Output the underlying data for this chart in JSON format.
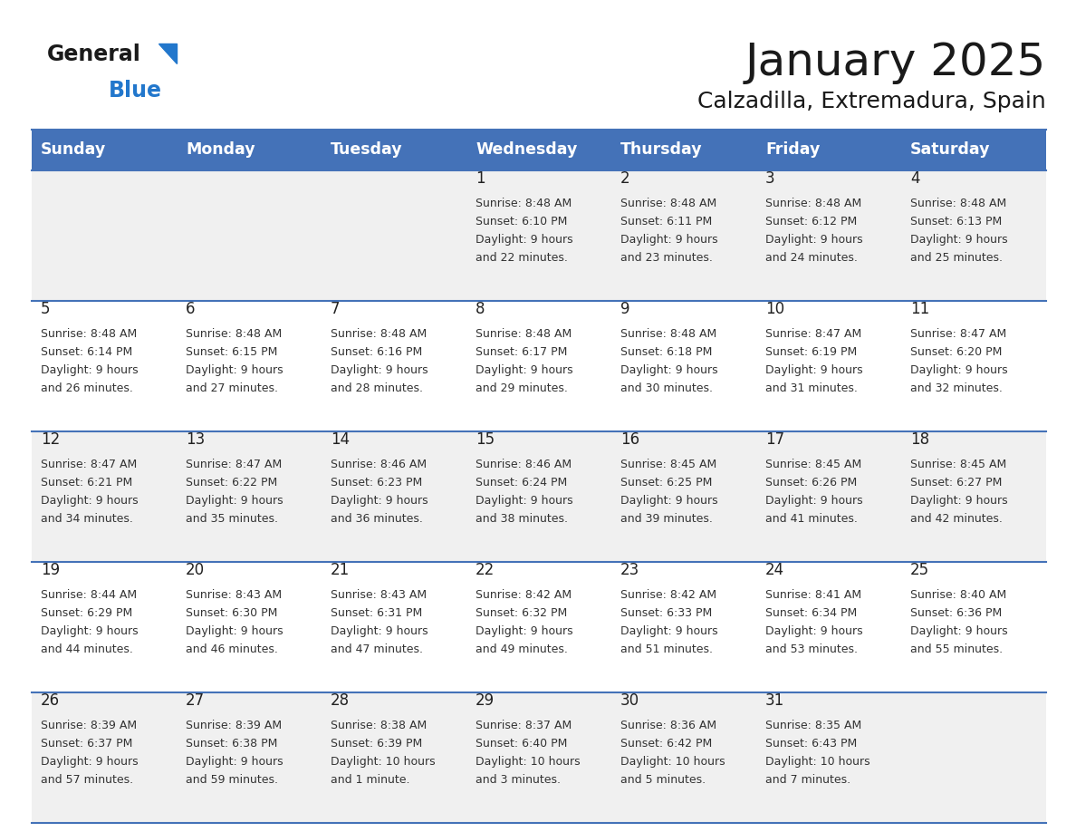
{
  "title": "January 2025",
  "subtitle": "Calzadilla, Extremadura, Spain",
  "days_of_week": [
    "Sunday",
    "Monday",
    "Tuesday",
    "Wednesday",
    "Thursday",
    "Friday",
    "Saturday"
  ],
  "header_bg": "#4472b8",
  "header_text": "#ffffff",
  "row_bg_odd": "#f0f0f0",
  "row_bg_even": "#ffffff",
  "cell_border_color": "#4472b8",
  "day_num_color": "#222222",
  "cell_text_color": "#333333",
  "title_color": "#1a1a1a",
  "subtitle_color": "#1a1a1a",
  "logo_general_color": "#1a1a1a",
  "logo_blue_color": "#2277cc",
  "logo_triangle_color": "#2277cc",
  "calendar": [
    [
      {
        "day": null,
        "info": ""
      },
      {
        "day": null,
        "info": ""
      },
      {
        "day": null,
        "info": ""
      },
      {
        "day": 1,
        "info": "Sunrise: 8:48 AM\nSunset: 6:10 PM\nDaylight: 9 hours\nand 22 minutes."
      },
      {
        "day": 2,
        "info": "Sunrise: 8:48 AM\nSunset: 6:11 PM\nDaylight: 9 hours\nand 23 minutes."
      },
      {
        "day": 3,
        "info": "Sunrise: 8:48 AM\nSunset: 6:12 PM\nDaylight: 9 hours\nand 24 minutes."
      },
      {
        "day": 4,
        "info": "Sunrise: 8:48 AM\nSunset: 6:13 PM\nDaylight: 9 hours\nand 25 minutes."
      }
    ],
    [
      {
        "day": 5,
        "info": "Sunrise: 8:48 AM\nSunset: 6:14 PM\nDaylight: 9 hours\nand 26 minutes."
      },
      {
        "day": 6,
        "info": "Sunrise: 8:48 AM\nSunset: 6:15 PM\nDaylight: 9 hours\nand 27 minutes."
      },
      {
        "day": 7,
        "info": "Sunrise: 8:48 AM\nSunset: 6:16 PM\nDaylight: 9 hours\nand 28 minutes."
      },
      {
        "day": 8,
        "info": "Sunrise: 8:48 AM\nSunset: 6:17 PM\nDaylight: 9 hours\nand 29 minutes."
      },
      {
        "day": 9,
        "info": "Sunrise: 8:48 AM\nSunset: 6:18 PM\nDaylight: 9 hours\nand 30 minutes."
      },
      {
        "day": 10,
        "info": "Sunrise: 8:47 AM\nSunset: 6:19 PM\nDaylight: 9 hours\nand 31 minutes."
      },
      {
        "day": 11,
        "info": "Sunrise: 8:47 AM\nSunset: 6:20 PM\nDaylight: 9 hours\nand 32 minutes."
      }
    ],
    [
      {
        "day": 12,
        "info": "Sunrise: 8:47 AM\nSunset: 6:21 PM\nDaylight: 9 hours\nand 34 minutes."
      },
      {
        "day": 13,
        "info": "Sunrise: 8:47 AM\nSunset: 6:22 PM\nDaylight: 9 hours\nand 35 minutes."
      },
      {
        "day": 14,
        "info": "Sunrise: 8:46 AM\nSunset: 6:23 PM\nDaylight: 9 hours\nand 36 minutes."
      },
      {
        "day": 15,
        "info": "Sunrise: 8:46 AM\nSunset: 6:24 PM\nDaylight: 9 hours\nand 38 minutes."
      },
      {
        "day": 16,
        "info": "Sunrise: 8:45 AM\nSunset: 6:25 PM\nDaylight: 9 hours\nand 39 minutes."
      },
      {
        "day": 17,
        "info": "Sunrise: 8:45 AM\nSunset: 6:26 PM\nDaylight: 9 hours\nand 41 minutes."
      },
      {
        "day": 18,
        "info": "Sunrise: 8:45 AM\nSunset: 6:27 PM\nDaylight: 9 hours\nand 42 minutes."
      }
    ],
    [
      {
        "day": 19,
        "info": "Sunrise: 8:44 AM\nSunset: 6:29 PM\nDaylight: 9 hours\nand 44 minutes."
      },
      {
        "day": 20,
        "info": "Sunrise: 8:43 AM\nSunset: 6:30 PM\nDaylight: 9 hours\nand 46 minutes."
      },
      {
        "day": 21,
        "info": "Sunrise: 8:43 AM\nSunset: 6:31 PM\nDaylight: 9 hours\nand 47 minutes."
      },
      {
        "day": 22,
        "info": "Sunrise: 8:42 AM\nSunset: 6:32 PM\nDaylight: 9 hours\nand 49 minutes."
      },
      {
        "day": 23,
        "info": "Sunrise: 8:42 AM\nSunset: 6:33 PM\nDaylight: 9 hours\nand 51 minutes."
      },
      {
        "day": 24,
        "info": "Sunrise: 8:41 AM\nSunset: 6:34 PM\nDaylight: 9 hours\nand 53 minutes."
      },
      {
        "day": 25,
        "info": "Sunrise: 8:40 AM\nSunset: 6:36 PM\nDaylight: 9 hours\nand 55 minutes."
      }
    ],
    [
      {
        "day": 26,
        "info": "Sunrise: 8:39 AM\nSunset: 6:37 PM\nDaylight: 9 hours\nand 57 minutes."
      },
      {
        "day": 27,
        "info": "Sunrise: 8:39 AM\nSunset: 6:38 PM\nDaylight: 9 hours\nand 59 minutes."
      },
      {
        "day": 28,
        "info": "Sunrise: 8:38 AM\nSunset: 6:39 PM\nDaylight: 10 hours\nand 1 minute."
      },
      {
        "day": 29,
        "info": "Sunrise: 8:37 AM\nSunset: 6:40 PM\nDaylight: 10 hours\nand 3 minutes."
      },
      {
        "day": 30,
        "info": "Sunrise: 8:36 AM\nSunset: 6:42 PM\nDaylight: 10 hours\nand 5 minutes."
      },
      {
        "day": 31,
        "info": "Sunrise: 8:35 AM\nSunset: 6:43 PM\nDaylight: 10 hours\nand 7 minutes."
      },
      {
        "day": null,
        "info": ""
      }
    ]
  ]
}
